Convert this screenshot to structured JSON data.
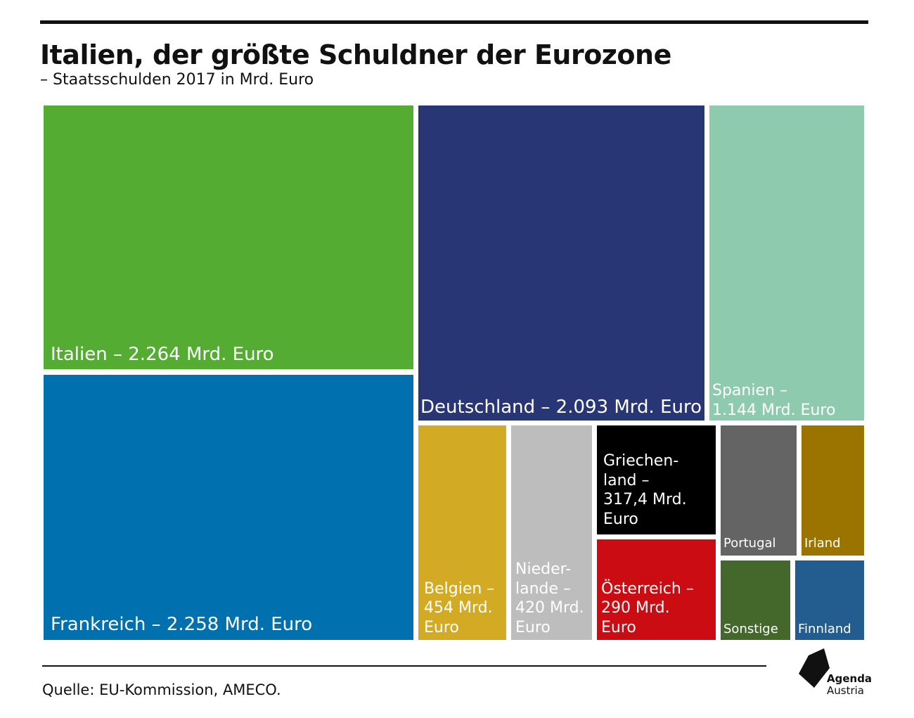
{
  "header": {
    "title": "Italien, der größte Schuldner der Eurozone",
    "subtitle": "– Staatsschulden 2017 in Mrd. Euro"
  },
  "chart_data": {
    "type": "treemap",
    "title": "Italien, der größte Schuldner der Eurozone",
    "subtitle": "– Staatsschulden 2017 in Mrd. Euro",
    "unit": "Mrd. Euro",
    "items": [
      {
        "name": "Italien",
        "value": 2264,
        "label": "Italien – 2.264 Mrd. Euro",
        "color": "#54ad32"
      },
      {
        "name": "Frankreich",
        "value": 2258,
        "label": "Frankreich – 2.258 Mrd. Euro",
        "color": "#0070af"
      },
      {
        "name": "Deutschland",
        "value": 2093,
        "label": "Deutschland – 2.093 Mrd. Euro",
        "color": "#293676"
      },
      {
        "name": "Spanien",
        "value": 1144,
        "label": "Spanien –\n1.144 Mrd. Euro",
        "color": "#8ecaad"
      },
      {
        "name": "Belgien",
        "value": 454,
        "label": "Belgien –\n454 Mrd.\nEuro",
        "color": "#d3aa23"
      },
      {
        "name": "Niederlande",
        "value": 420,
        "label": "Nieder-\nlande –\n420 Mrd.\nEuro",
        "color": "#bdbdbd"
      },
      {
        "name": "Griechenland",
        "value": 317.4,
        "label": "Griechen-\nland –\n317,4 Mrd.\nEuro",
        "color": "#000000"
      },
      {
        "name": "Österreich",
        "value": 290,
        "label": "Österreich –\n290 Mrd.\nEuro",
        "color": "#cc0c13"
      },
      {
        "name": "Portugal",
        "label": "Portugal",
        "color": "#646464"
      },
      {
        "name": "Irland",
        "label": "Irland",
        "color": "#9b7400"
      },
      {
        "name": "Sonstige",
        "label": "Sonstige",
        "color": "#44682b"
      },
      {
        "name": "Finnland",
        "label": "Finnland",
        "color": "#235c8e"
      }
    ]
  },
  "footer": {
    "source": "Quelle: EU-Kommission, AMECO.",
    "logo_line1": "Agenda",
    "logo_line2": "Austria"
  }
}
